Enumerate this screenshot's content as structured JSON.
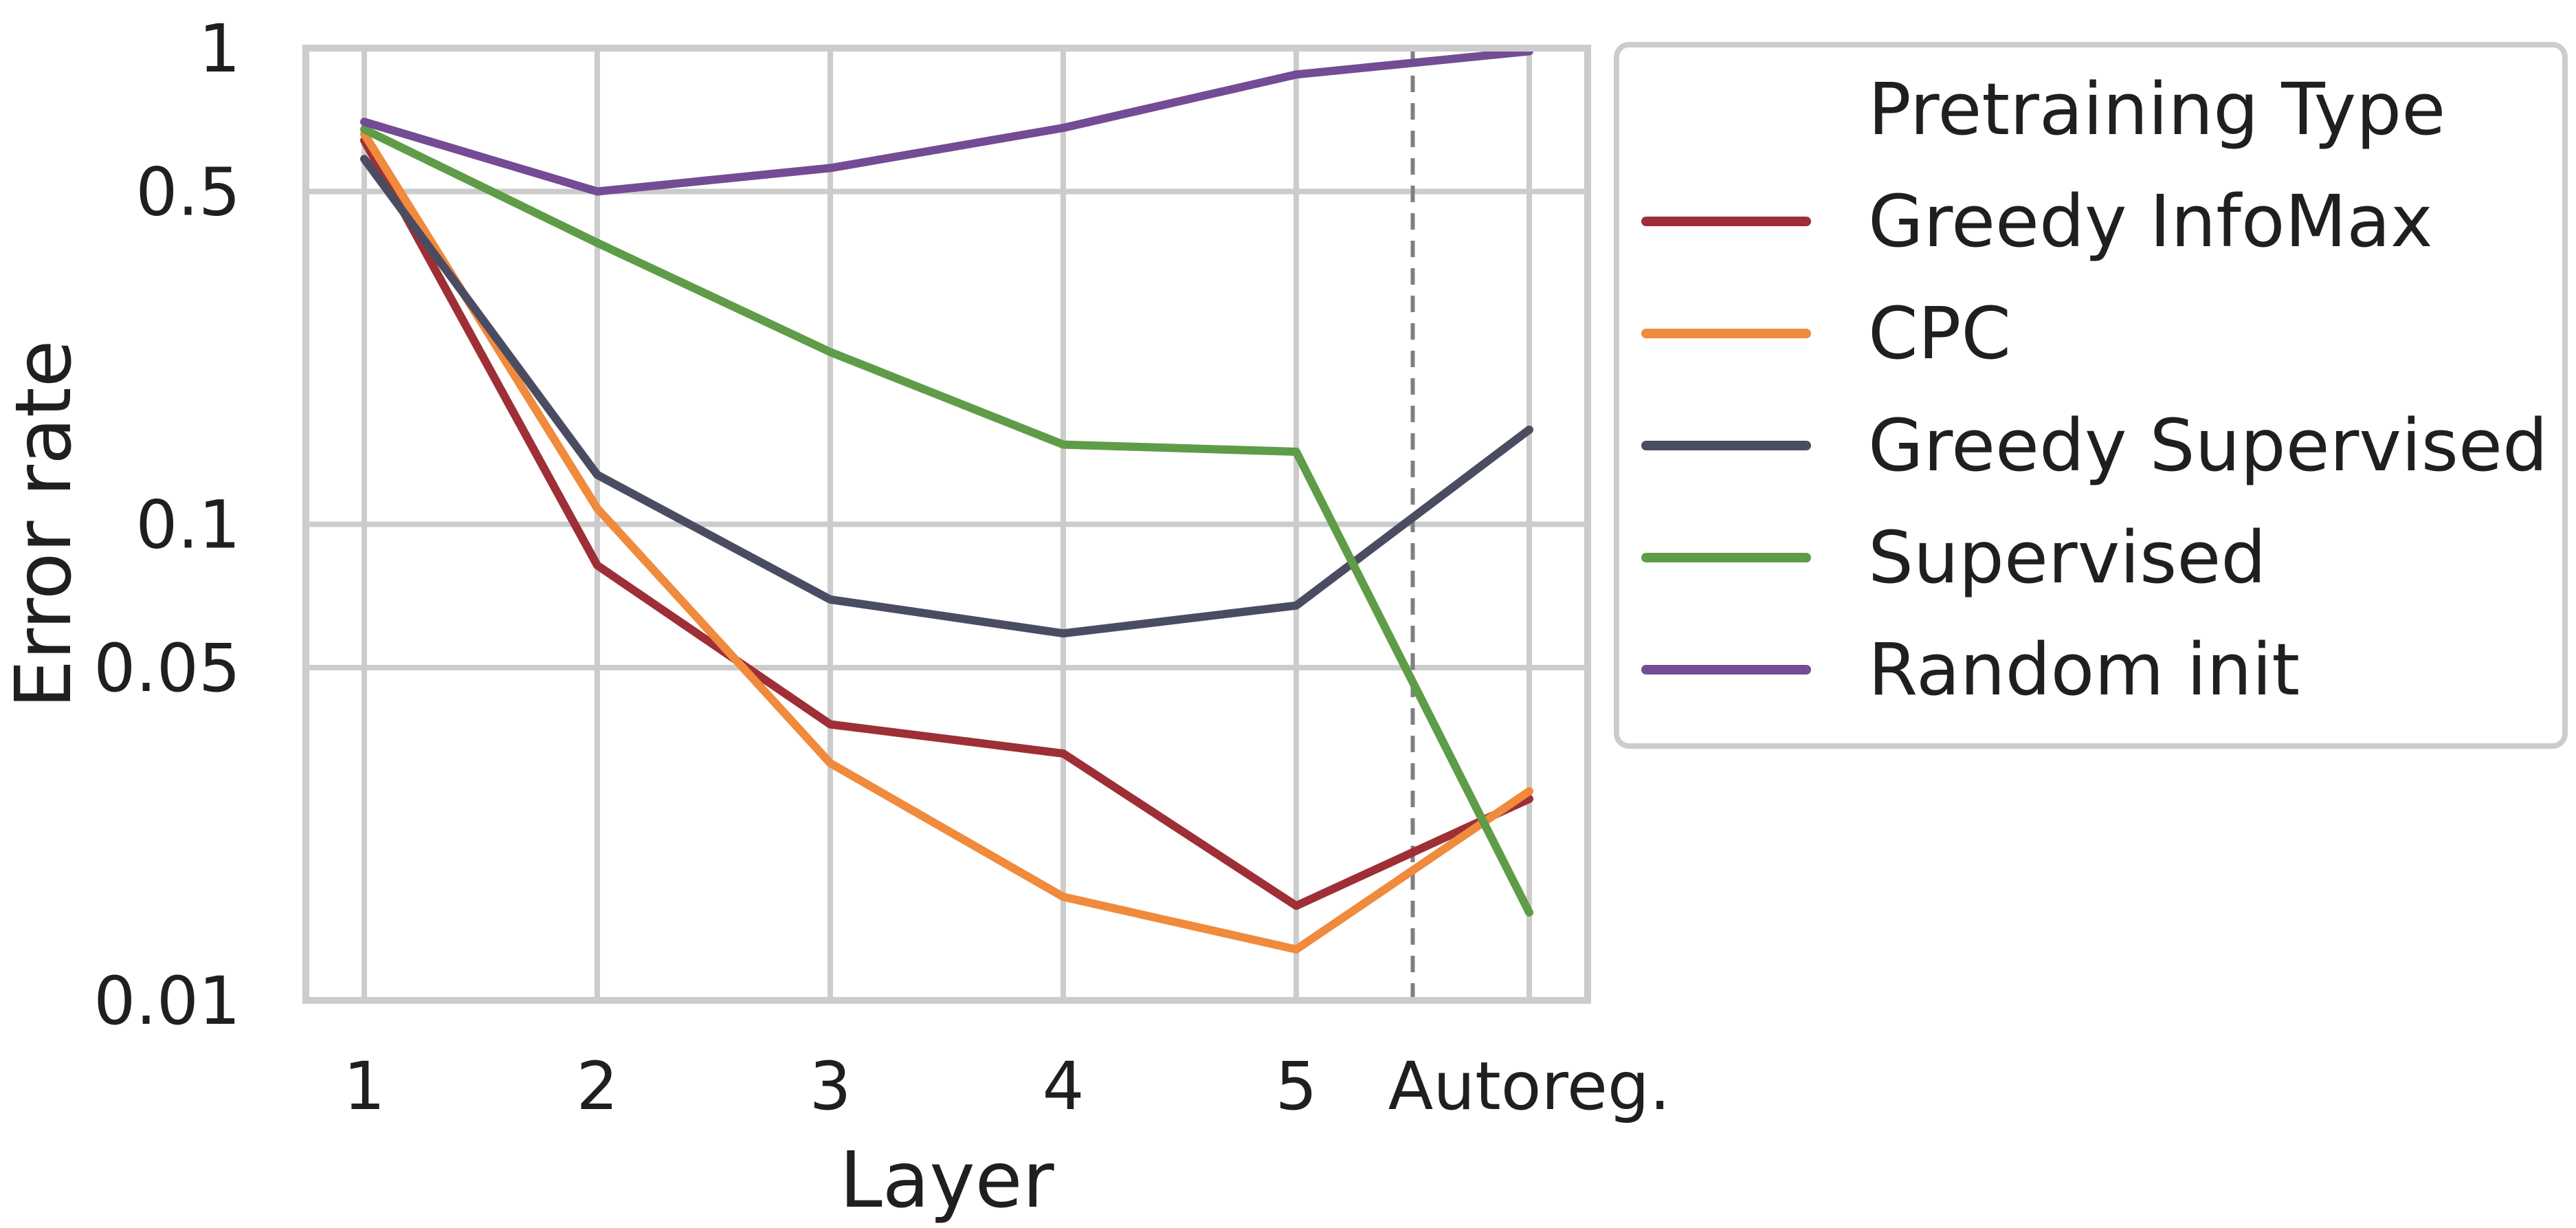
{
  "chart_data": {
    "type": "line",
    "categories": [
      "1",
      "2",
      "3",
      "4",
      "5",
      "Autoreg."
    ],
    "xlabel": "Layer",
    "ylabel": "Error rate",
    "yscale": "log",
    "ylim": [
      0.01,
      1
    ],
    "yticks": [
      {
        "value": 1,
        "label": "1"
      },
      {
        "value": 0.5,
        "label": "0.5"
      },
      {
        "value": 0.1,
        "label": "0.1"
      },
      {
        "value": 0.05,
        "label": "0.05"
      },
      {
        "value": 0.01,
        "label": "0.01"
      }
    ],
    "grid": true,
    "divider_between": [
      "5",
      "Autoreg."
    ],
    "legend": {
      "title": "Pretraining Type",
      "placement": "outside-right"
    },
    "series": [
      {
        "name": "Greedy InfoMax",
        "color": "#9e2f36",
        "values": [
          0.64,
          0.082,
          0.038,
          0.033,
          0.0158,
          0.0265
        ]
      },
      {
        "name": "CPC",
        "color": "#f08a3c",
        "values": [
          0.66,
          0.108,
          0.0315,
          0.0165,
          0.0128,
          0.0275
        ]
      },
      {
        "name": "Greedy Supervised",
        "color": "#4a4d62",
        "values": [
          0.585,
          0.127,
          0.0695,
          0.059,
          0.0675,
          0.158
        ]
      },
      {
        "name": "Supervised",
        "color": "#5f9c48",
        "values": [
          0.675,
          0.39,
          0.23,
          0.147,
          0.142,
          0.0153
        ]
      },
      {
        "name": "Random init",
        "color": "#744b95",
        "values": [
          0.7,
          0.5,
          0.56,
          0.68,
          0.88,
          0.985
        ]
      }
    ]
  }
}
